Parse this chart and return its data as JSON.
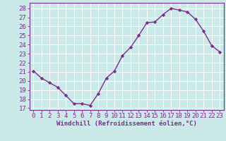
{
  "x": [
    0,
    1,
    2,
    3,
    4,
    5,
    6,
    7,
    8,
    9,
    10,
    11,
    12,
    13,
    14,
    15,
    16,
    17,
    18,
    19,
    20,
    21,
    22,
    23
  ],
  "y": [
    21.1,
    20.3,
    19.8,
    19.3,
    18.4,
    17.5,
    17.5,
    17.3,
    18.6,
    20.3,
    21.1,
    22.8,
    23.7,
    25.0,
    26.4,
    26.5,
    27.3,
    28.0,
    27.8,
    27.6,
    26.8,
    25.5,
    23.9,
    23.2
  ],
  "line_color": "#7b2d8b",
  "marker": "D",
  "marker_size": 2.2,
  "bg_color": "#cce9e9",
  "grid_color": "#ffffff",
  "ylabel_ticks": [
    17,
    18,
    19,
    20,
    21,
    22,
    23,
    24,
    25,
    26,
    27,
    28
  ],
  "ylim": [
    16.8,
    28.6
  ],
  "xlim": [
    -0.5,
    23.5
  ],
  "xlabel": "Windchill (Refroidissement éolien,°C)",
  "xlabel_fontsize": 6.5,
  "tick_fontsize": 6.5,
  "line_width": 1.0
}
